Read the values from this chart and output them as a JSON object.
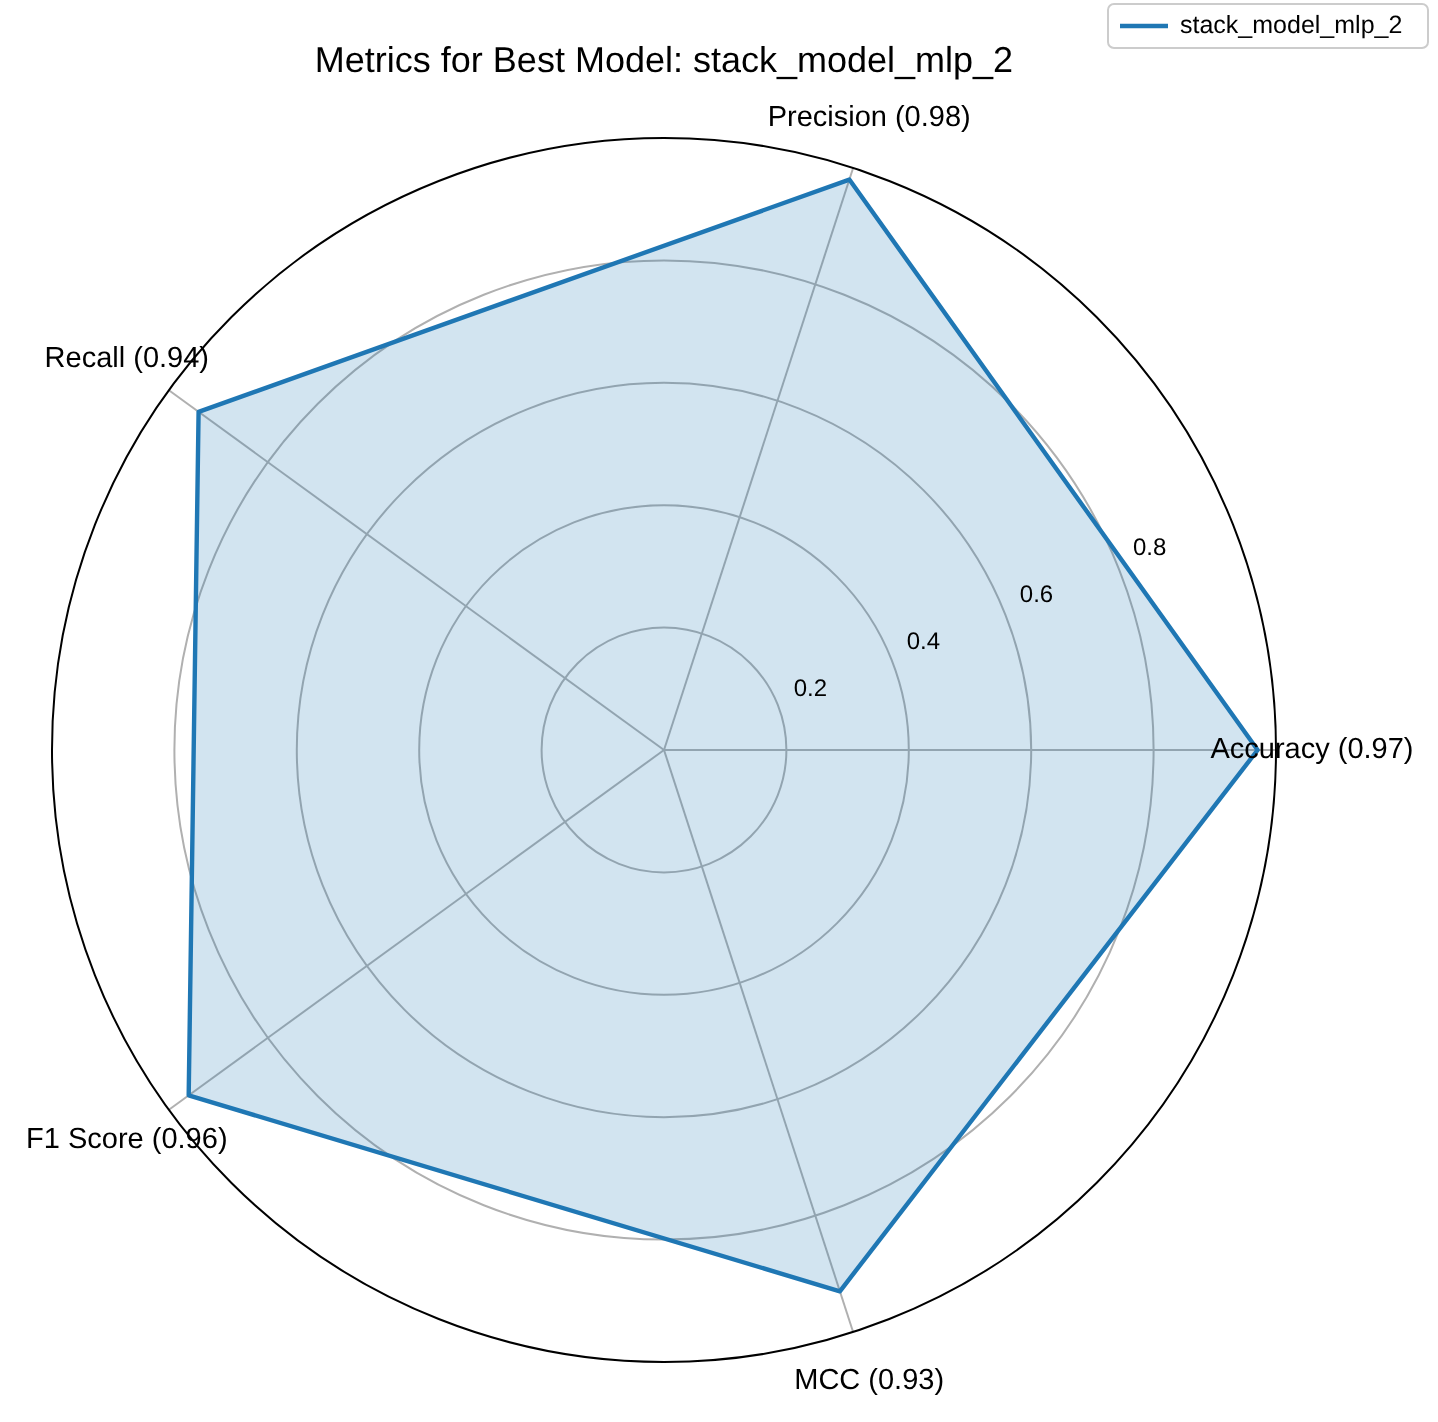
{
  "chart_data": {
    "type": "radar",
    "title": "Metrics for Best Model: stack_model_mlp_2",
    "categories": [
      "Precision (0.98)",
      "Accuracy (0.97)",
      "MCC (0.93)",
      "F1 Score (0.96)",
      "Recall (0.94)"
    ],
    "series": [
      {
        "name": "stack_model_mlp_2",
        "color": "#1f77b4",
        "values": [
          0.98,
          0.97,
          0.93,
          0.96,
          0.94
        ]
      }
    ],
    "ylim": [
      0,
      1
    ],
    "yticks": [
      0.2,
      0.4,
      0.6,
      0.8
    ],
    "grid": true,
    "legend": "top right",
    "marker": "none",
    "line_style": "solid"
  }
}
